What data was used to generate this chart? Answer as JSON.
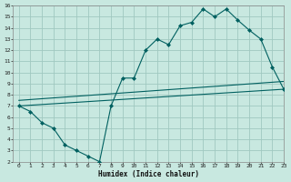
{
  "bg_color": "#c8e8e0",
  "grid_color": "#a0c8c0",
  "line_color": "#006060",
  "marker_color": "#006060",
  "line1_x": [
    0,
    1,
    2,
    3,
    4,
    5,
    6,
    7,
    8,
    9,
    10,
    11,
    12,
    13,
    14,
    15,
    16,
    17,
    18,
    19,
    20,
    21,
    22,
    23
  ],
  "line1_y": [
    7.0,
    6.5,
    5.5,
    5.0,
    3.5,
    3.0,
    2.5,
    2.0,
    7.0,
    9.5,
    9.5,
    12.0,
    13.0,
    12.5,
    14.2,
    14.5,
    15.7,
    15.0,
    15.7,
    14.7,
    13.8,
    13.0,
    10.5,
    8.5
  ],
  "line2_x": [
    0,
    23
  ],
  "line2_y": [
    7.0,
    8.5
  ],
  "line3_x": [
    0,
    23
  ],
  "line3_y": [
    7.5,
    9.2
  ],
  "xlabel": "Humidex (Indice chaleur)",
  "xlim": [
    -0.5,
    23
  ],
  "ylim": [
    2,
    16
  ],
  "xticks": [
    0,
    1,
    2,
    3,
    4,
    5,
    6,
    7,
    8,
    9,
    10,
    11,
    12,
    13,
    14,
    15,
    16,
    17,
    18,
    19,
    20,
    21,
    22,
    23
  ],
  "yticks": [
    2,
    3,
    4,
    5,
    6,
    7,
    8,
    9,
    10,
    11,
    12,
    13,
    14,
    15,
    16
  ]
}
